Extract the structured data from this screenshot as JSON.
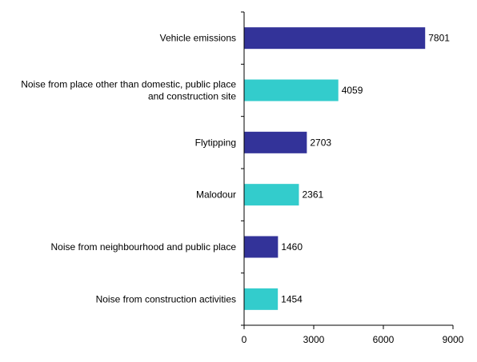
{
  "chart_data": {
    "type": "bar",
    "orientation": "horizontal",
    "categories": [
      "Vehicle emissions",
      "Noise from place other than domestic, public place and construction site",
      "Flytipping",
      "Malodour",
      "Noise from neighbourhood and public place",
      "Noise from construction activities"
    ],
    "category_lines": [
      [
        "Vehicle emissions"
      ],
      [
        "Noise from place other than domestic, public place",
        "and construction site"
      ],
      [
        "Flytipping"
      ],
      [
        "Malodour"
      ],
      [
        "Noise from neighbourhood and public place"
      ],
      [
        "Noise from construction activities"
      ]
    ],
    "values": [
      7801,
      4059,
      2703,
      2361,
      1460,
      1454
    ],
    "data_labels": [
      "7801",
      "4059",
      "2703",
      "2361",
      "1460",
      "1454"
    ],
    "bar_colors": [
      "#333399",
      "#33CCCC",
      "#333399",
      "#33CCCC",
      "#333399",
      "#33CCCC"
    ],
    "xlim": [
      0,
      9000
    ],
    "xticks": [
      0,
      3000,
      6000,
      9000
    ],
    "xtick_labels": [
      "0",
      "3000",
      "6000",
      "9000"
    ],
    "title": "",
    "xlabel": "",
    "ylabel": "",
    "grid": false,
    "legend": "none"
  }
}
